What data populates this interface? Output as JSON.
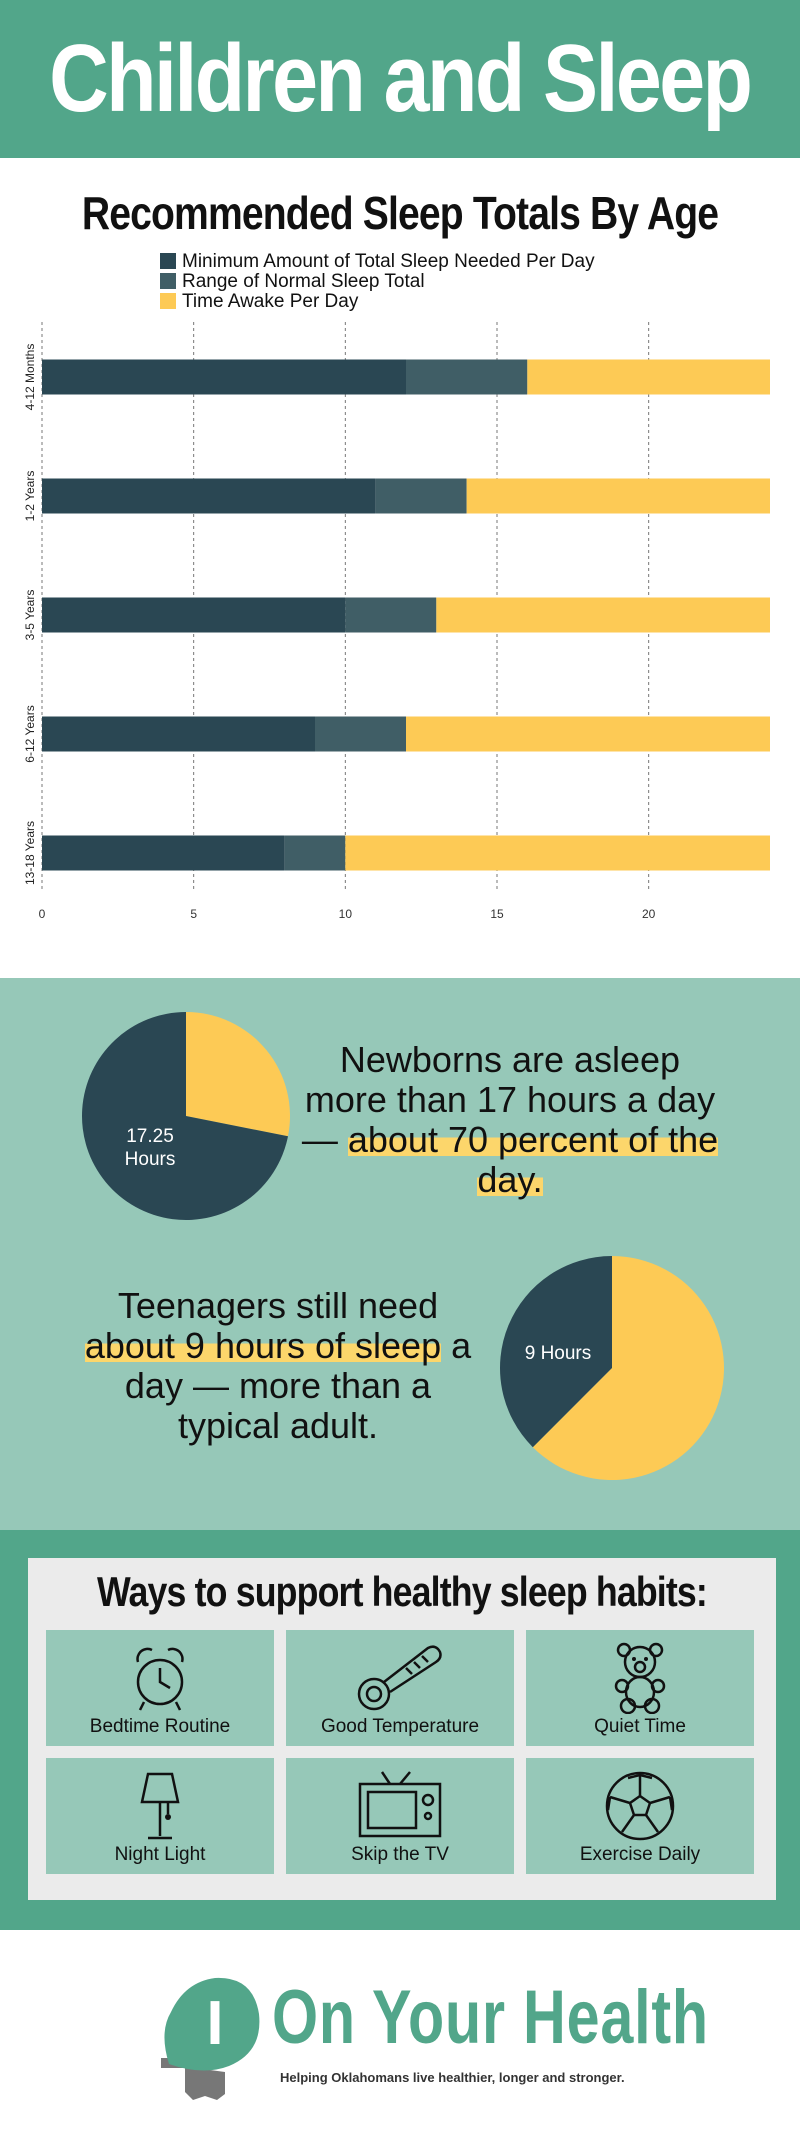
{
  "header": {
    "title": "Children and Sleep"
  },
  "colors": {
    "teal": "#52a68a",
    "light_teal": "#96c8b8",
    "dark": "#2a4753",
    "mid": "#405e66",
    "yellow": "#fdca55"
  },
  "chart_data": {
    "type": "bar",
    "orientation": "horizontal",
    "stacked": true,
    "title": "Recommended Sleep Totals By Age",
    "categories": [
      "4-12 Months",
      "1-2 Years",
      "3-5 Years",
      "6-12 Years",
      "13-18 Years"
    ],
    "series": [
      {
        "name": "Minimum Amount of Total Sleep Needed Per Day",
        "color": "#2a4753",
        "values": [
          12,
          11,
          10,
          9,
          8
        ]
      },
      {
        "name": "Range of Normal Sleep Total",
        "color": "#405e66",
        "values": [
          4,
          3,
          3,
          3,
          2
        ]
      },
      {
        "name": "Time Awake Per Day",
        "color": "#fdca55",
        "values": [
          8,
          10,
          11,
          12,
          14
        ]
      }
    ],
    "x_ticks": [
      0,
      5,
      10,
      15,
      20
    ],
    "xlim": [
      0,
      24
    ],
    "grid": "vertical dashed",
    "legend": "top-left"
  },
  "stats": {
    "newborn": {
      "pie": {
        "asleep_hours": 17.25,
        "total_hours": 24,
        "label_line1": "17.25",
        "label_line2": "Hours"
      },
      "text_pre": "Newborns are asleep more than 17 hours a day — ",
      "text_highlight": "about 70 percent of the day."
    },
    "teen": {
      "pie": {
        "asleep_hours": 9,
        "total_hours": 24,
        "label": "9 Hours"
      },
      "text_pre": "Teenagers still need ",
      "text_highlight": "about 9 hours of sleep",
      "text_post": " a day — more than a typical adult."
    }
  },
  "tips": {
    "title": "Ways to support healthy sleep habits:",
    "items": [
      {
        "label": "Bedtime Routine",
        "icon": "alarm-clock-icon"
      },
      {
        "label": "Good Temperature",
        "icon": "thermometer-icon"
      },
      {
        "label": "Quiet Time",
        "icon": "teddy-bear-icon"
      },
      {
        "label": "Night Light",
        "icon": "lamp-icon"
      },
      {
        "label": "Skip the TV",
        "icon": "tv-icon"
      },
      {
        "label": "Exercise Daily",
        "icon": "soccer-ball-icon"
      }
    ]
  },
  "footer": {
    "logo_mark": "I",
    "brand": "On Your Health",
    "tagline": "Helping Oklahomans live healthier, longer and stronger."
  }
}
